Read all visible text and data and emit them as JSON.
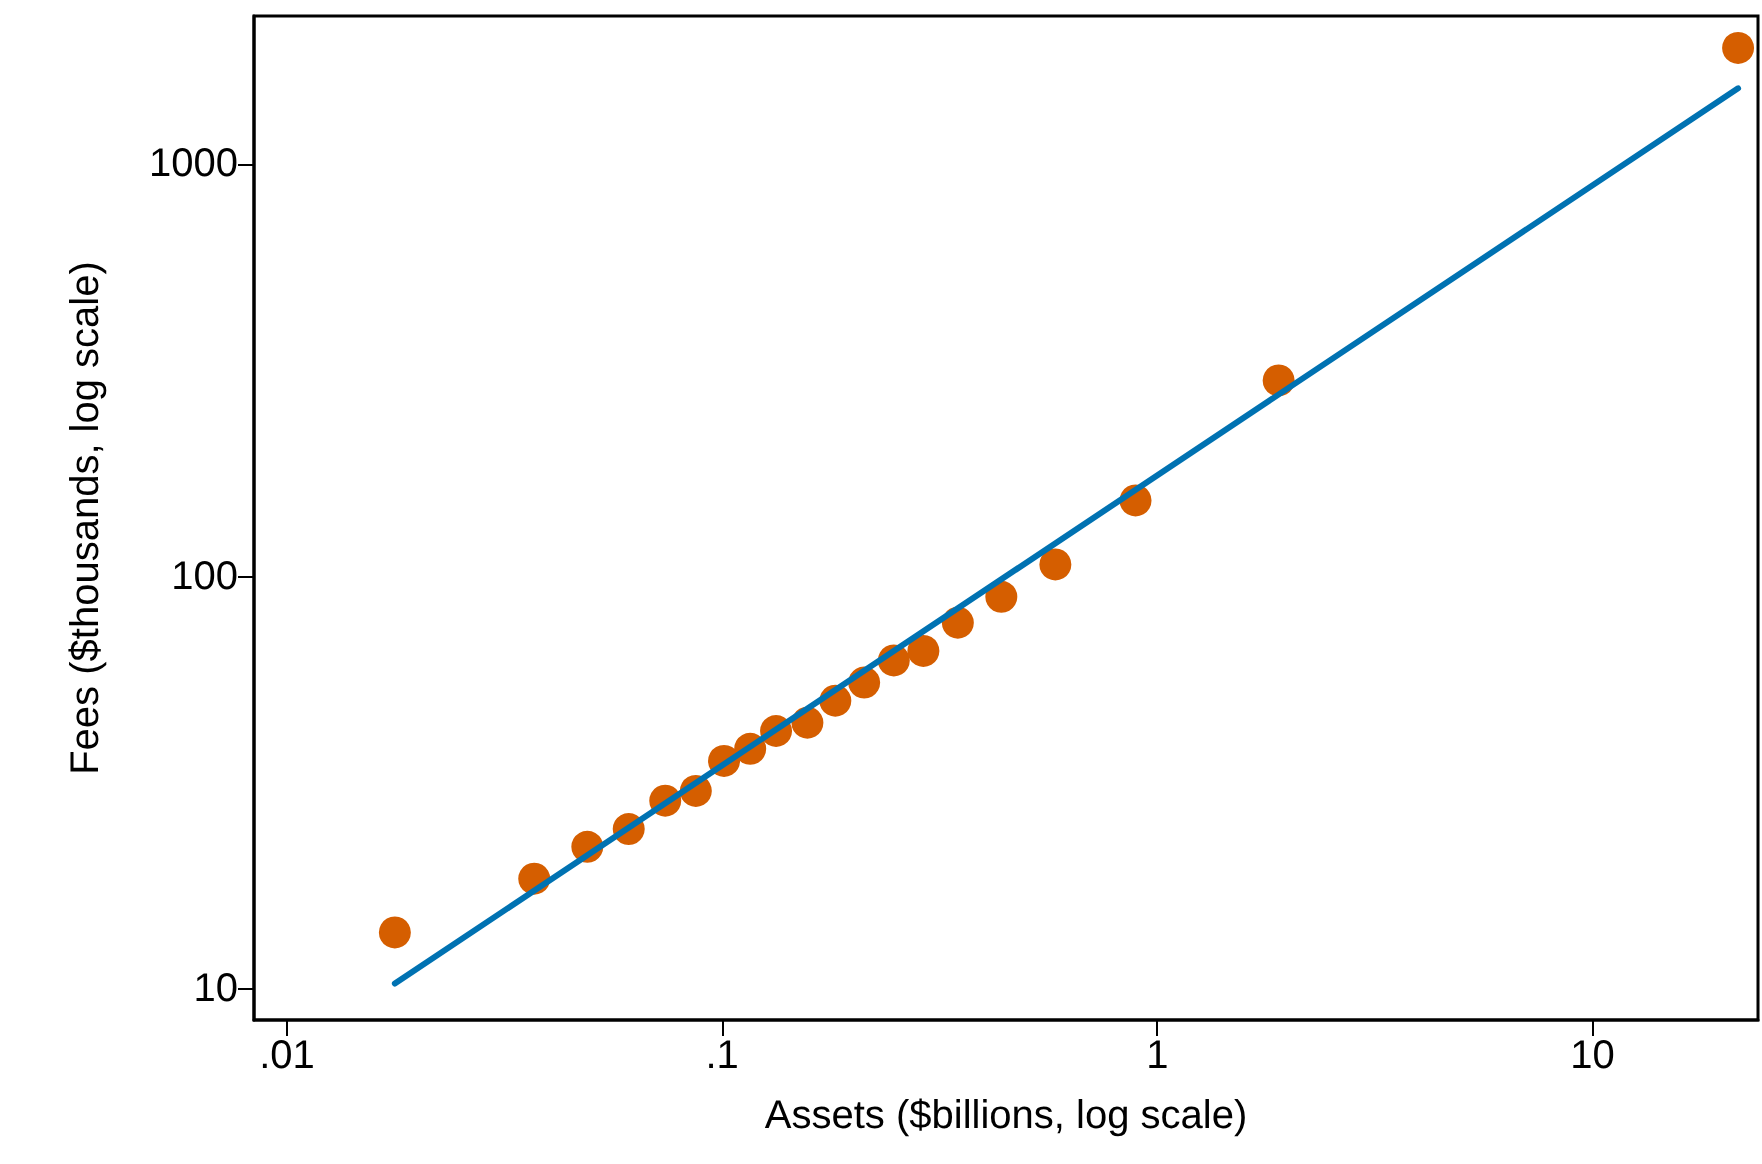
{
  "chart_data": {
    "type": "scatter",
    "xlabel": "Assets ($billions, log scale)",
    "ylabel": "Fees ($thousands, log scale)",
    "log": "xy",
    "grid": false,
    "marker": "circle",
    "xlim": [
      0.0084,
      24
    ],
    "ylim": [
      8.4,
      2290
    ],
    "xticks": [
      {
        "value": 0.01,
        "label": ".01"
      },
      {
        "value": 0.1,
        "label": ".1"
      },
      1,
      10
    ],
    "yticks": [
      10,
      100,
      1000
    ],
    "series": [
      {
        "color": "#d55e00",
        "x": [
          0.0177,
          0.037,
          0.049,
          0.061,
          0.074,
          0.087,
          0.101,
          0.116,
          0.133,
          0.157,
          0.182,
          0.212,
          0.248,
          0.29,
          0.348,
          0.438,
          0.583,
          0.891,
          1.9,
          21.6
        ],
        "values": [
          13.7,
          18.5,
          22.1,
          24.4,
          28.6,
          30.2,
          35.7,
          38.2,
          42.2,
          44.2,
          50,
          55.3,
          62.6,
          66,
          77.3,
          89.3,
          107,
          153,
          299,
          1916
        ]
      },
      {
        "type": "line",
        "color": "#0072b2",
        "line_style": "solid",
        "marker": "none",
        "x": [
          0.0177,
          21.6
        ],
        "values": [
          10.3,
          1529
        ]
      }
    ]
  }
}
